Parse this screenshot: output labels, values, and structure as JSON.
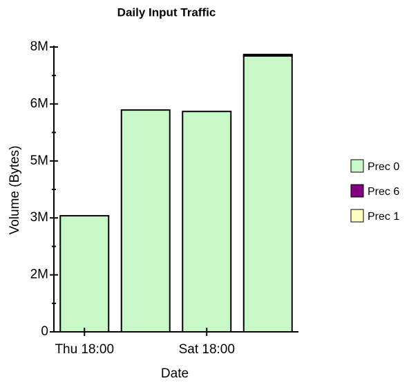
{
  "chart_data": {
    "type": "bar",
    "stacked": true,
    "title": "Daily Input Traffic",
    "x_label": "Date",
    "y_label": "Volume (Bytes)",
    "categories": [
      "Thu 18:00",
      null,
      "Sat 18:00",
      null
    ],
    "series": [
      {
        "name": "Prec 0",
        "color": "#c8f8c8",
        "values": [
          3260000,
          6230000,
          6190000,
          7750000
        ]
      },
      {
        "name": "Prec 6",
        "color": "#800080",
        "values": [
          0,
          0,
          0,
          40000
        ]
      },
      {
        "name": "Prec 1",
        "color": "#ffffc0",
        "values": [
          0,
          0,
          0,
          0
        ]
      }
    ],
    "ylim": [
      0,
      8000000
    ],
    "yticks": [
      0,
      {
        "value": 1600000,
        "label": "2M"
      },
      {
        "value": 3200000,
        "label": "3M"
      },
      {
        "value": 4800000,
        "label": "5M"
      },
      {
        "value": 6400000,
        "label": "6M"
      },
      {
        "value": 8000000,
        "label": "8M"
      }
    ],
    "legend": "right",
    "grid": false
  }
}
